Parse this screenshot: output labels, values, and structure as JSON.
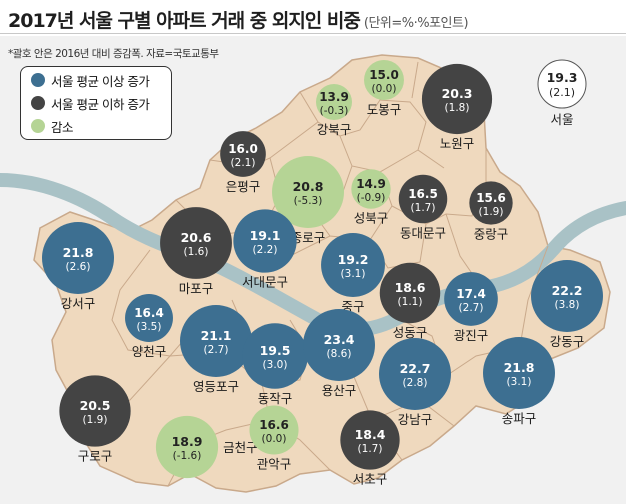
{
  "title": "2017년 서울 구별 아파트 거래 중 외지인 비중",
  "unit": "(단위=%·%포인트)",
  "note": "*괄호 안은 2016년 대비 증감폭. 자료=국토교통부",
  "colors": {
    "above": "#3d6f91",
    "below": "#444444",
    "decrease": "#b5d495",
    "land": "#efd9be",
    "river": "#a9c2c6",
    "border": "#c9a98b",
    "panel": "#f1f1f1"
  },
  "legend": [
    {
      "label": "서울 평균 이상 증가",
      "category": "above"
    },
    {
      "label": "서울 평균 이하 증가",
      "category": "below"
    },
    {
      "label": "감소",
      "category": "decrease"
    }
  ],
  "districts": [
    {
      "name": "도봉구",
      "value": "15.0",
      "change": "(0.0)",
      "category": "decrease"
    },
    {
      "name": "강북구",
      "value": "13.9",
      "change": "(-0.3)",
      "category": "decrease"
    },
    {
      "name": "노원구",
      "value": "20.3",
      "change": "(1.8)",
      "category": "below"
    },
    {
      "name": "은평구",
      "value": "16.0",
      "change": "(2.1)",
      "category": "below"
    },
    {
      "name": "종로구",
      "value": "20.8",
      "change": "(-5.3)",
      "category": "decrease"
    },
    {
      "name": "성북구",
      "value": "14.9",
      "change": "(-0.9)",
      "category": "decrease"
    },
    {
      "name": "동대문구",
      "value": "16.5",
      "change": "(1.7)",
      "category": "below"
    },
    {
      "name": "중랑구",
      "value": "15.6",
      "change": "(1.9)",
      "category": "below"
    },
    {
      "name": "마포구",
      "value": "20.6",
      "change": "(1.6)",
      "category": "below"
    },
    {
      "name": "서대문구",
      "value": "19.1",
      "change": "(2.2)",
      "category": "above"
    },
    {
      "name": "강서구",
      "value": "21.8",
      "change": "(2.6)",
      "category": "above"
    },
    {
      "name": "중구",
      "value": "19.2",
      "change": "(3.1)",
      "category": "above"
    },
    {
      "name": "성동구",
      "value": "18.6",
      "change": "(1.1)",
      "category": "below"
    },
    {
      "name": "광진구",
      "value": "17.4",
      "change": "(2.7)",
      "category": "above"
    },
    {
      "name": "강동구",
      "value": "22.2",
      "change": "(3.8)",
      "category": "above"
    },
    {
      "name": "양천구",
      "value": "16.4",
      "change": "(3.5)",
      "category": "above"
    },
    {
      "name": "영등포구",
      "value": "21.1",
      "change": "(2.7)",
      "category": "above"
    },
    {
      "name": "동작구",
      "value": "19.5",
      "change": "(3.0)",
      "category": "above"
    },
    {
      "name": "용산구",
      "value": "23.4",
      "change": "(8.6)",
      "category": "above"
    },
    {
      "name": "강남구",
      "value": "22.7",
      "change": "(2.8)",
      "category": "above"
    },
    {
      "name": "송파구",
      "value": "21.8",
      "change": "(3.1)",
      "category": "above"
    },
    {
      "name": "구로구",
      "value": "20.5",
      "change": "(1.9)",
      "category": "below"
    },
    {
      "name": "금천구",
      "value": "18.9",
      "change": "(-1.6)",
      "category": "decrease"
    },
    {
      "name": "관악구",
      "value": "16.6",
      "change": "(0.0)",
      "category": "decrease"
    },
    {
      "name": "서초구",
      "value": "18.4",
      "change": "(1.7)",
      "category": "below"
    }
  ],
  "seoul": {
    "name": "서울",
    "value": "19.3",
    "change": "(2.1)"
  }
}
